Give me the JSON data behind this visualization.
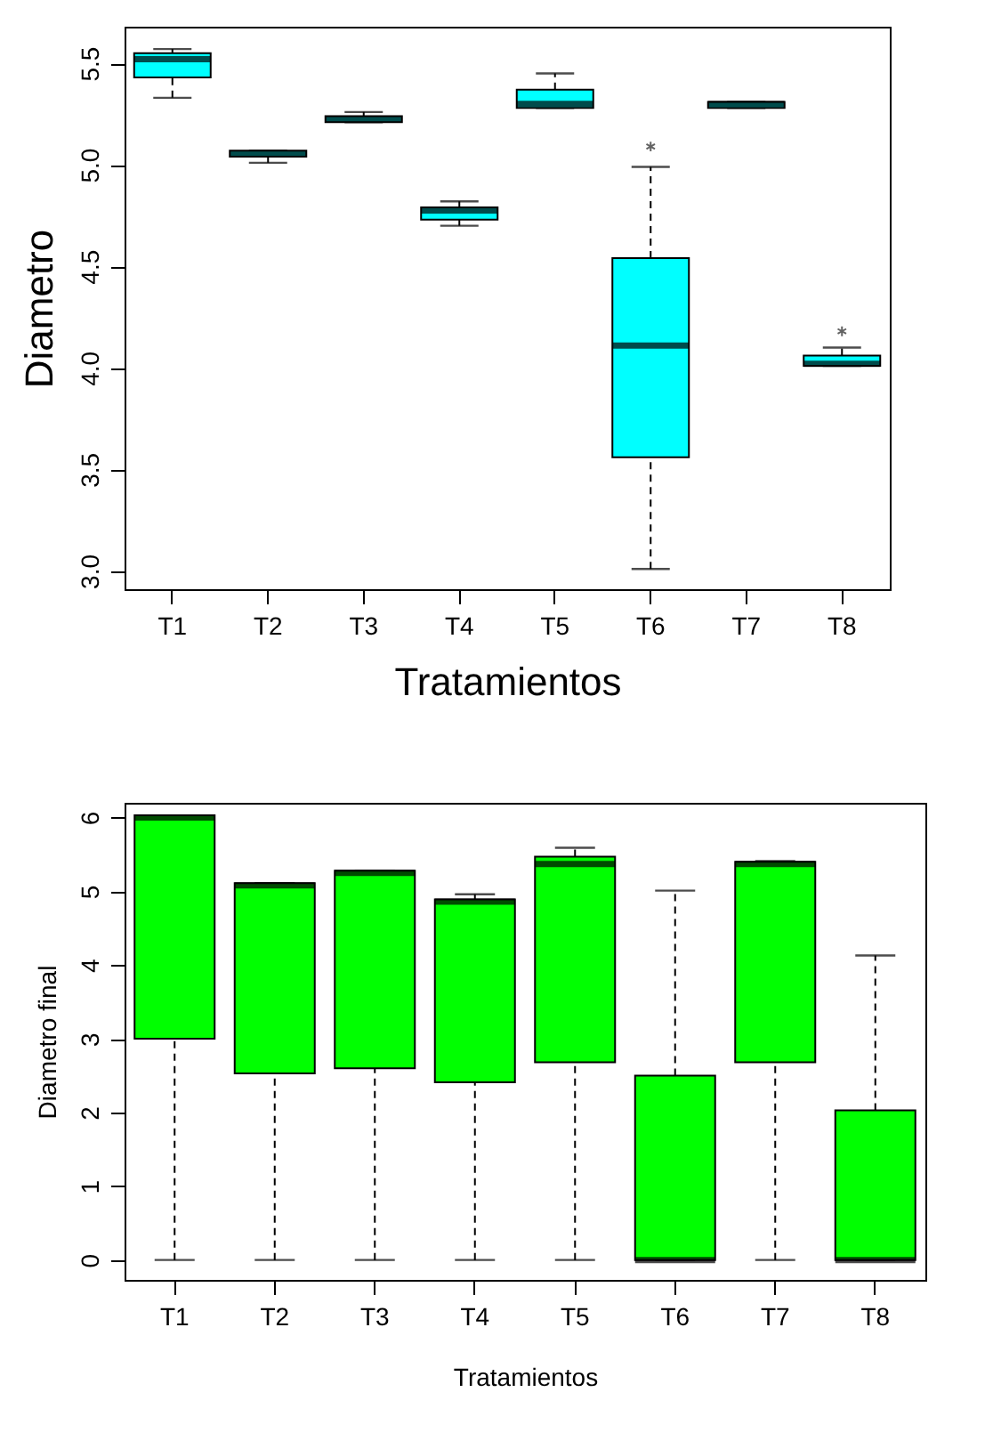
{
  "chart_data": [
    {
      "type": "box",
      "xlabel": "Tratamientos",
      "ylabel": "Diametro",
      "categories": [
        "T1",
        "T2",
        "T3",
        "T4",
        "T5",
        "T6",
        "T7",
        "T8"
      ],
      "color": "#00ffff",
      "ylim": [
        2.91,
        5.68
      ],
      "yticks": [
        {
          "value": 3,
          "label": "3.0"
        },
        3.5,
        {
          "value": 4,
          "label": "4.0"
        },
        4.5,
        {
          "value": 5,
          "label": "5.0"
        },
        5.5
      ],
      "grid": false,
      "boxes": [
        {
          "low": 5.33,
          "q1": 5.43,
          "median": 5.52,
          "q3": 5.55,
          "high": 5.57
        },
        {
          "low": 5.01,
          "q1": 5.04,
          "median": 5.055,
          "q3": 5.07,
          "high": 5.07
        },
        {
          "low": 5.21,
          "q1": 5.21,
          "median": 5.225,
          "q3": 5.24,
          "high": 5.26
        },
        {
          "low": 4.7,
          "q1": 4.73,
          "median": 4.775,
          "q3": 4.79,
          "high": 4.82
        },
        {
          "low": 5.28,
          "q1": 5.28,
          "median": 5.3,
          "q3": 5.37,
          "high": 5.45
        },
        {
          "low": 3.01,
          "q1": 3.56,
          "median": 4.11,
          "q3": 4.54,
          "high": 4.99,
          "outliers": [
            5.09
          ]
        },
        {
          "low": 5.28,
          "q1": 5.28,
          "median": 5.3,
          "q3": 5.31,
          "high": 5.31
        },
        {
          "low": 4.01,
          "q1": 4.01,
          "median": 4.02,
          "q3": 4.06,
          "high": 4.1,
          "outliers": [
            4.18
          ]
        }
      ]
    },
    {
      "type": "box",
      "xlabel": "Tratamientos",
      "ylabel": "Diametro final",
      "categories": [
        "T1",
        "T2",
        "T3",
        "T4",
        "T5",
        "T6",
        "T7",
        "T8"
      ],
      "color": "#00ff00",
      "ylim": [
        -0.27,
        6.2
      ],
      "yticks": [
        0,
        1,
        2,
        3,
        4,
        5,
        6
      ],
      "grid": false,
      "boxes": [
        {
          "low": 0,
          "q1": 3.0,
          "median": 6.0,
          "q3": 6.03,
          "high": 6.03
        },
        {
          "low": 0,
          "q1": 2.53,
          "median": 5.08,
          "q3": 5.11,
          "high": 5.11
        },
        {
          "low": 0,
          "q1": 2.6,
          "median": 5.25,
          "q3": 5.28,
          "high": 5.28
        },
        {
          "low": 0,
          "q1": 2.41,
          "median": 4.86,
          "q3": 4.89,
          "high": 4.96
        },
        {
          "low": 0,
          "q1": 2.68,
          "median": 5.37,
          "q3": 5.47,
          "high": 5.59
        },
        {
          "low": 0,
          "q1": 0,
          "median": 0,
          "q3": 2.5,
          "high": 5.01
        },
        {
          "low": 0,
          "q1": 2.68,
          "median": 5.37,
          "q3": 5.4,
          "high": 5.41
        },
        {
          "low": 0,
          "q1": 0,
          "median": 0,
          "q3": 2.03,
          "high": 4.13
        }
      ]
    }
  ]
}
